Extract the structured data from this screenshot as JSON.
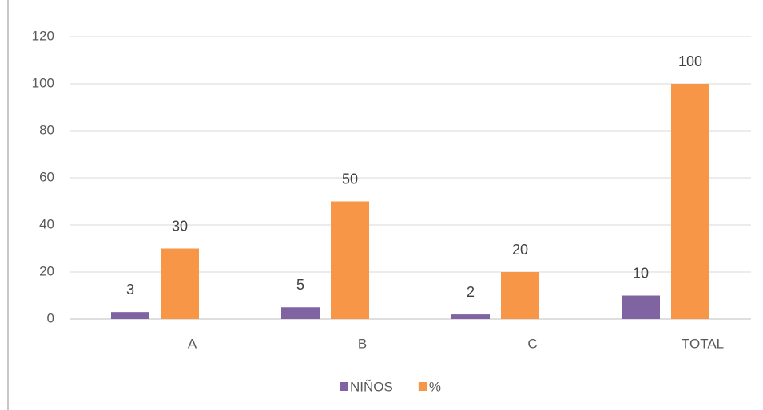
{
  "chart_data": {
    "type": "bar",
    "categories": [
      "A",
      "B",
      "C",
      "TOTAL"
    ],
    "series": [
      {
        "name": "NIÑOS",
        "color": "#8064a2",
        "values": [
          3,
          5,
          2,
          10
        ]
      },
      {
        "name": "%",
        "color": "#f79646",
        "values": [
          30,
          50,
          20,
          100
        ]
      }
    ],
    "ylim": [
      0,
      120
    ],
    "yticks": [
      0,
      20,
      40,
      60,
      80,
      100,
      120
    ],
    "grid": true,
    "legend": "bottom"
  }
}
